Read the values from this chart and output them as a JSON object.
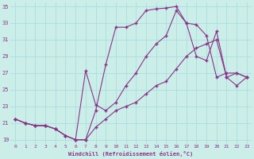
{
  "xlabel": "Windchill (Refroidissement éolien,°C)",
  "bg_color": "#cceee8",
  "line_color": "#883388",
  "grid_color": "#aadddd",
  "ylim": [
    19,
    35
  ],
  "xlim": [
    0,
    23
  ],
  "yticks": [
    19,
    21,
    23,
    25,
    27,
    29,
    31,
    33,
    35
  ],
  "xticks": [
    0,
    1,
    2,
    3,
    4,
    5,
    6,
    7,
    8,
    9,
    10,
    11,
    12,
    13,
    14,
    15,
    16,
    17,
    18,
    19,
    20,
    21,
    22,
    23
  ],
  "series1_x": [
    0,
    1,
    2,
    3,
    4,
    5,
    6,
    7,
    8,
    9,
    10,
    11,
    12,
    13,
    14,
    15,
    16,
    17,
    18,
    19,
    20,
    21,
    22,
    23
  ],
  "series1_y": [
    21.5,
    21.0,
    20.7,
    20.7,
    20.3,
    19.5,
    19.0,
    19.0,
    22.5,
    28.0,
    32.5,
    32.5,
    33.0,
    34.5,
    34.7,
    34.8,
    35.0,
    33.0,
    32.8,
    31.5,
    26.5,
    27.0,
    27.0,
    26.5
  ],
  "series2_x": [
    0,
    1,
    2,
    3,
    4,
    5,
    6,
    7,
    8,
    9,
    10,
    11,
    12,
    13,
    14,
    15,
    16,
    17,
    18,
    19,
    20,
    21,
    22,
    23
  ],
  "series2_y": [
    21.5,
    21.0,
    20.7,
    20.7,
    20.3,
    19.5,
    19.0,
    27.3,
    23.2,
    22.5,
    23.5,
    25.5,
    27.0,
    29.0,
    30.5,
    31.5,
    34.5,
    33.0,
    29.0,
    28.5,
    32.0,
    26.5,
    27.0,
    26.5
  ],
  "series3_x": [
    0,
    1,
    2,
    3,
    4,
    5,
    6,
    7,
    8,
    9,
    10,
    11,
    12,
    13,
    14,
    15,
    16,
    17,
    18,
    19,
    20,
    21,
    22,
    23
  ],
  "series3_y": [
    21.5,
    21.0,
    20.7,
    20.7,
    20.3,
    19.5,
    19.0,
    19.0,
    20.5,
    21.5,
    22.5,
    23.0,
    23.5,
    24.5,
    25.5,
    26.0,
    27.5,
    29.0,
    30.0,
    30.5,
    31.0,
    26.5,
    25.5,
    26.5
  ]
}
